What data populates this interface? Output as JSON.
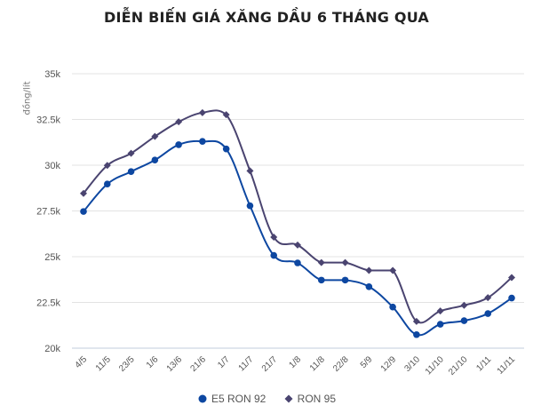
{
  "title": "DIỄN BIẾN GIÁ XĂNG DẦU 6 THÁNG QUA",
  "colors": {
    "e5": "#0d47a1",
    "ron95": "#4a4470",
    "grid": "#e3e3e3",
    "axis": "#d6dde8"
  },
  "chart_data": {
    "type": "line",
    "title": "DIỄN BIẾN GIÁ XĂNG DẦU 6 THÁNG QUA",
    "xlabel": "",
    "ylabel": "đồng/lít",
    "ylim": [
      20000,
      35000
    ],
    "yticks": [
      20000,
      22500,
      25000,
      27500,
      30000,
      32500,
      35000
    ],
    "ytick_labels": [
      "20k",
      "22.5k",
      "25k",
      "27.5k",
      "30k",
      "32.5k",
      "35k"
    ],
    "grid": true,
    "legend_position": "bottom",
    "categories": [
      "4/5",
      "11/5",
      "23/5",
      "1/6",
      "13/6",
      "21/6",
      "1/7",
      "11/7",
      "21/7",
      "1/8",
      "11/8",
      "22/8",
      "5/9",
      "12/9",
      "3/10",
      "11/10",
      "21/10",
      "1/11",
      "11/11"
    ],
    "series": [
      {
        "name": "E5 RON 92",
        "marker": "circle",
        "color": "#0d47a1",
        "values": [
          27470,
          28970,
          29650,
          30280,
          31120,
          31300,
          30890,
          27780,
          25070,
          24660,
          23720,
          23720,
          23360,
          22250,
          20740,
          21310,
          21500,
          21890,
          22740
        ]
      },
      {
        "name": "RON 95",
        "marker": "diamond",
        "color": "#4a4470",
        "values": [
          28460,
          29990,
          30650,
          31570,
          32370,
          32870,
          32760,
          29690,
          26070,
          25640,
          24680,
          24680,
          24250,
          24250,
          21460,
          22030,
          22340,
          22760,
          23860
        ]
      }
    ]
  }
}
